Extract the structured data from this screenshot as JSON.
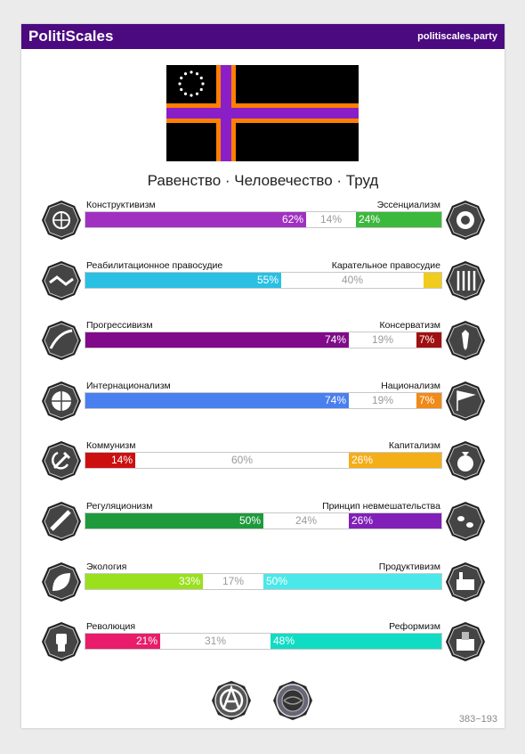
{
  "header": {
    "brand": "PolitiScales",
    "site": "politiscales.party"
  },
  "flag": {
    "background": "#000000",
    "cross_outer": "#ff7f00",
    "cross_inner": "#8a1fc8",
    "stars": "#ffffff"
  },
  "slogan": "Равенство · Человечество · Труд",
  "axes": [
    {
      "left_label": "Конструктивизм",
      "right_label": "Эссенциализм",
      "left_value": 62,
      "neutral_value": 14,
      "right_value": 24,
      "left_text": "62%",
      "neutral_text": "14%",
      "right_text": "24%",
      "left_color": "#a030c0",
      "right_color": "#3cb83c",
      "left_icon": "constructivism-icon",
      "right_icon": "essentialism-icon"
    },
    {
      "left_label": "Реабилитационное правосудие",
      "right_label": "Карательное правосудие",
      "left_value": 55,
      "neutral_value": 40,
      "right_value": 5,
      "left_text": "55%",
      "neutral_text": "40%",
      "right_text": "",
      "left_color": "#29c0e4",
      "right_color": "#f0cc1c",
      "left_icon": "handshake-icon",
      "right_icon": "prison-bars-icon"
    },
    {
      "left_label": "Прогрессивизм",
      "right_label": "Консерватизм",
      "left_value": 74,
      "neutral_value": 19,
      "right_value": 7,
      "left_text": "74%",
      "neutral_text": "19%",
      "right_text": "7%",
      "left_color": "#800a8a",
      "right_color": "#a01010",
      "left_icon": "progress-icon",
      "right_icon": "tie-icon"
    },
    {
      "left_label": "Интернационализм",
      "right_label": "Национализм",
      "left_value": 74,
      "neutral_value": 19,
      "right_value": 7,
      "left_text": "74%",
      "neutral_text": "19%",
      "right_text": "7%",
      "left_color": "#4a7ff0",
      "right_color": "#f08a18",
      "left_icon": "globe-icon",
      "right_icon": "flag-icon"
    },
    {
      "left_label": "Коммунизм",
      "right_label": "Капитализм",
      "left_value": 14,
      "neutral_value": 60,
      "right_value": 26,
      "left_text": "14%",
      "neutral_text": "60%",
      "right_text": "26%",
      "left_color": "#cc1010",
      "right_color": "#f4ae18",
      "left_icon": "hammer-sickle-icon",
      "right_icon": "money-bag-icon"
    },
    {
      "left_label": "Регуляционизм",
      "right_label": "Принцип невмешательства",
      "left_value": 50,
      "neutral_value": 24,
      "right_value": 26,
      "left_text": "50%",
      "neutral_text": "24%",
      "right_text": "26%",
      "left_color": "#1e9a3c",
      "right_color": "#8020b8",
      "left_icon": "ruler-icon",
      "right_icon": "bees-icon"
    },
    {
      "left_label": "Экология",
      "right_label": "Продуктивизм",
      "left_value": 33,
      "neutral_value": 17,
      "right_value": 50,
      "left_text": "33%",
      "neutral_text": "17%",
      "right_text": "50%",
      "left_color": "#9ae01c",
      "right_color": "#4ae8e8",
      "left_icon": "ecology-icon",
      "right_icon": "production-icon"
    },
    {
      "left_label": "Революция",
      "right_label": "Реформизм",
      "left_value": 21,
      "neutral_value": 31,
      "right_value": 48,
      "left_text": "21%",
      "neutral_text": "31%",
      "right_text": "48%",
      "left_color": "#e81c6a",
      "right_color": "#10dcc4",
      "left_icon": "revolution-fist-icon",
      "right_icon": "ballot-icon"
    }
  ],
  "badges": [
    "anarchism-badge-icon",
    "world-badge-icon"
  ],
  "footer_code": "383−193"
}
